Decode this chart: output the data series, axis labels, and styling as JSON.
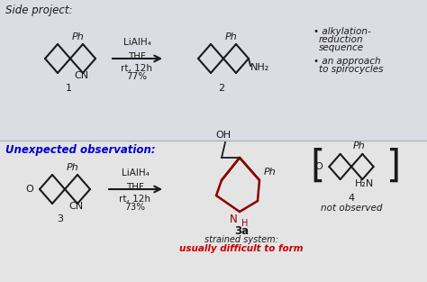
{
  "bg_top": "#dcdce4",
  "bg_bot": "#e4e4e4",
  "line_color": "#1a1a1a",
  "red_color": "#8B0000",
  "blue_color": "#0000CC",
  "red_text_color": "#CC0000",
  "title_side": "Side project:",
  "title_unexpected": "Unexpected observation:",
  "bullet1a": "• alkylation-",
  "bullet1b": "reduction",
  "bullet1c": "sequence",
  "bullet2a": "• an approach",
  "bullet2b": "to spirocycles",
  "reagent1a": "LiAlH₄",
  "reagent1b": "THF",
  "reagent1c": "rt, 12h",
  "reagent1d": "77%",
  "reagent2a": "LiAlH₄",
  "reagent2b": "THF",
  "reagent2c": "rt, 12h",
  "reagent2d": "73%",
  "label1": "1",
  "label2": "2",
  "label3": "3",
  "label3a": "3a",
  "label4": "4",
  "ph": "Ph",
  "cn": "CN",
  "nh2": "NH₂",
  "oh": "OH",
  "nh": "H",
  "h2n": "H₂N",
  "o_atom": "O",
  "strained1": "strained system:",
  "strained2": "usually difficult to form",
  "not_obs": "not observed"
}
